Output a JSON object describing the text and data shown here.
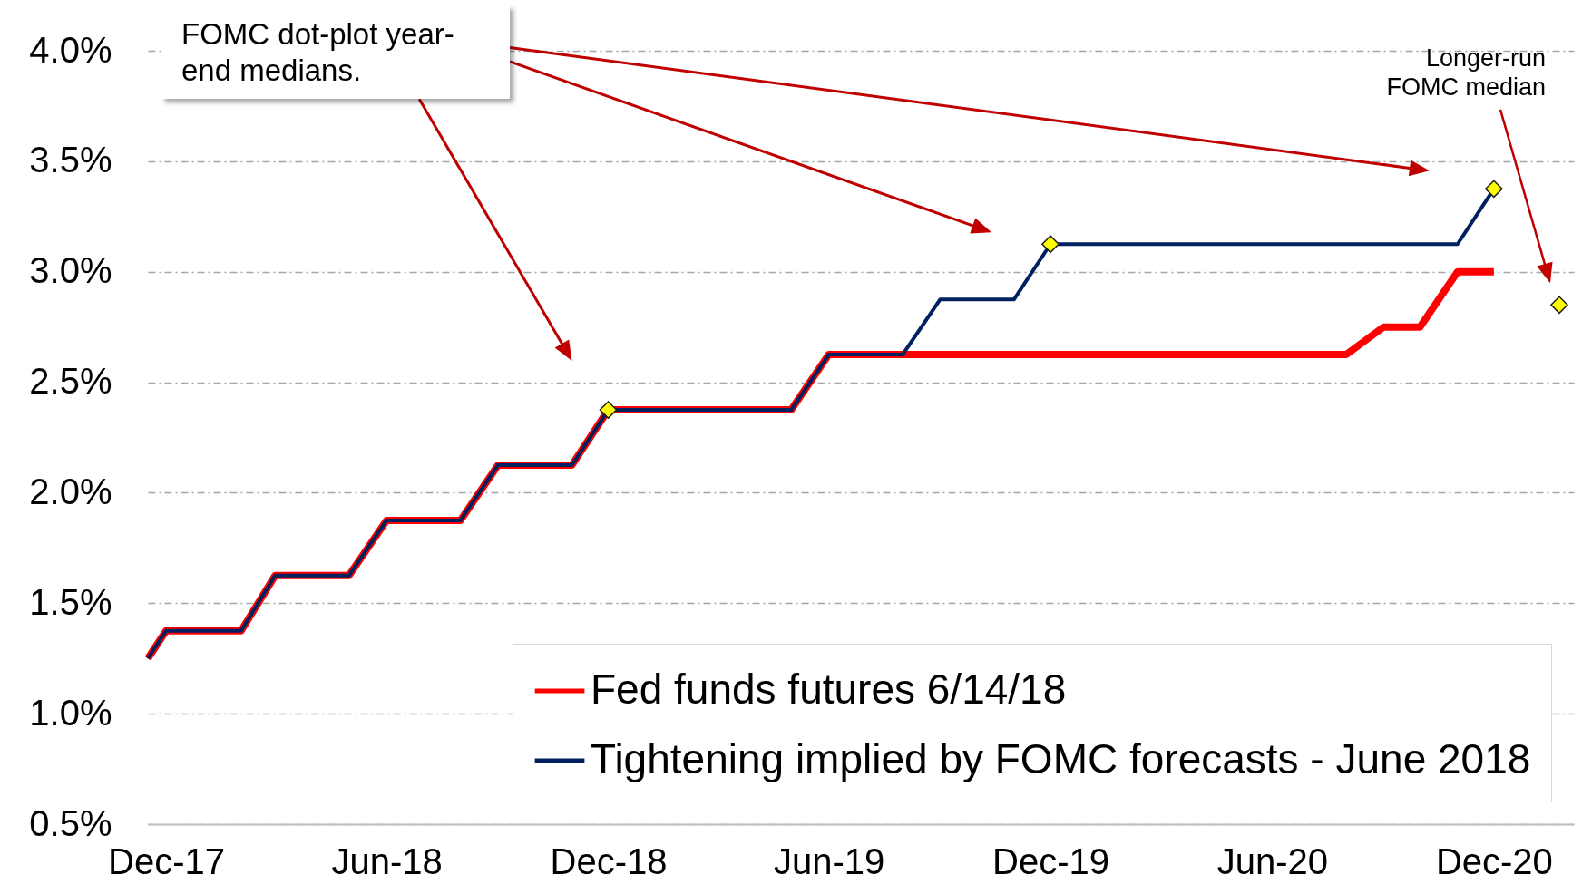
{
  "chart_data": {
    "type": "line",
    "annotations": [
      "FOMC dot-plot year-end medians.",
      "Longer-run FOMC median"
    ],
    "xlim": [
      "2017-11-16",
      "2021-02-05"
    ],
    "xticks": [
      {
        "value": "2017-12",
        "label": "Dec-17"
      },
      {
        "value": "2018-06",
        "label": "Jun-18"
      },
      {
        "value": "2018-12",
        "label": "Dec-18"
      },
      {
        "value": "2019-06",
        "label": "Jun-19"
      },
      {
        "value": "2019-12",
        "label": "Dec-19"
      },
      {
        "value": "2020-06",
        "label": "Jun-20"
      },
      {
        "value": "2020-12",
        "label": "Dec-20"
      }
    ],
    "ylim": [
      0.5,
      4.0
    ],
    "yticks": [
      {
        "value": 0.5,
        "label": "0.5%"
      },
      {
        "value": 1,
        "label": "1.0%"
      },
      {
        "value": 1.5,
        "label": "1.5%"
      },
      {
        "value": 2,
        "label": "2.0%"
      },
      {
        "value": 2.5,
        "label": "2.5%"
      },
      {
        "value": 3,
        "label": "3.0%"
      },
      {
        "value": 3.5,
        "label": "3.5%"
      },
      {
        "value": 4,
        "label": "4.0%"
      }
    ],
    "grid": "y",
    "legend": "bottom right",
    "line_style": "solid",
    "series": [
      {
        "name": "Fed funds futures 6/14/18",
        "color": "#ff0000",
        "x": [
          "2017-11-16",
          "2017-12",
          "2018-02",
          "2018-03",
          "2018-05",
          "2018-06",
          "2018-08",
          "2018-09",
          "2018-11",
          "2018-12",
          "2019-05",
          "2019-06",
          "2019-08",
          "2020-08",
          "2020-09",
          "2020-10",
          "2020-11",
          "2020-12"
        ],
        "values": [
          1.25,
          1.375,
          1.375,
          1.625,
          1.625,
          1.875,
          1.875,
          2.125,
          2.125,
          2.375,
          2.375,
          2.625,
          2.625,
          2.625,
          2.75,
          2.75,
          3.0,
          3.0
        ]
      },
      {
        "name": "Tightening implied by FOMC forecasts - June 2018",
        "color": "#002060",
        "x": [
          "2017-11-16",
          "2017-12",
          "2018-02",
          "2018-03",
          "2018-05",
          "2018-06",
          "2018-08",
          "2018-09",
          "2018-11",
          "2018-12",
          "2019-05",
          "2019-06",
          "2019-08",
          "2019-09",
          "2019-11",
          "2019-12",
          "2020-11",
          "2020-12"
        ],
        "values": [
          1.25,
          1.375,
          1.375,
          1.625,
          1.625,
          1.875,
          1.875,
          2.125,
          2.125,
          2.375,
          2.375,
          2.625,
          2.625,
          2.875,
          2.875,
          3.125,
          3.125,
          3.375
        ]
      },
      {
        "type": "scatter",
        "color": "#ffff00",
        "marker": "diamond",
        "x": [
          "2018-12",
          "2019-12",
          "2020-12",
          "2021-01-24"
        ],
        "values": [
          2.375,
          3.125,
          3.375,
          2.85
        ]
      }
    ]
  }
}
